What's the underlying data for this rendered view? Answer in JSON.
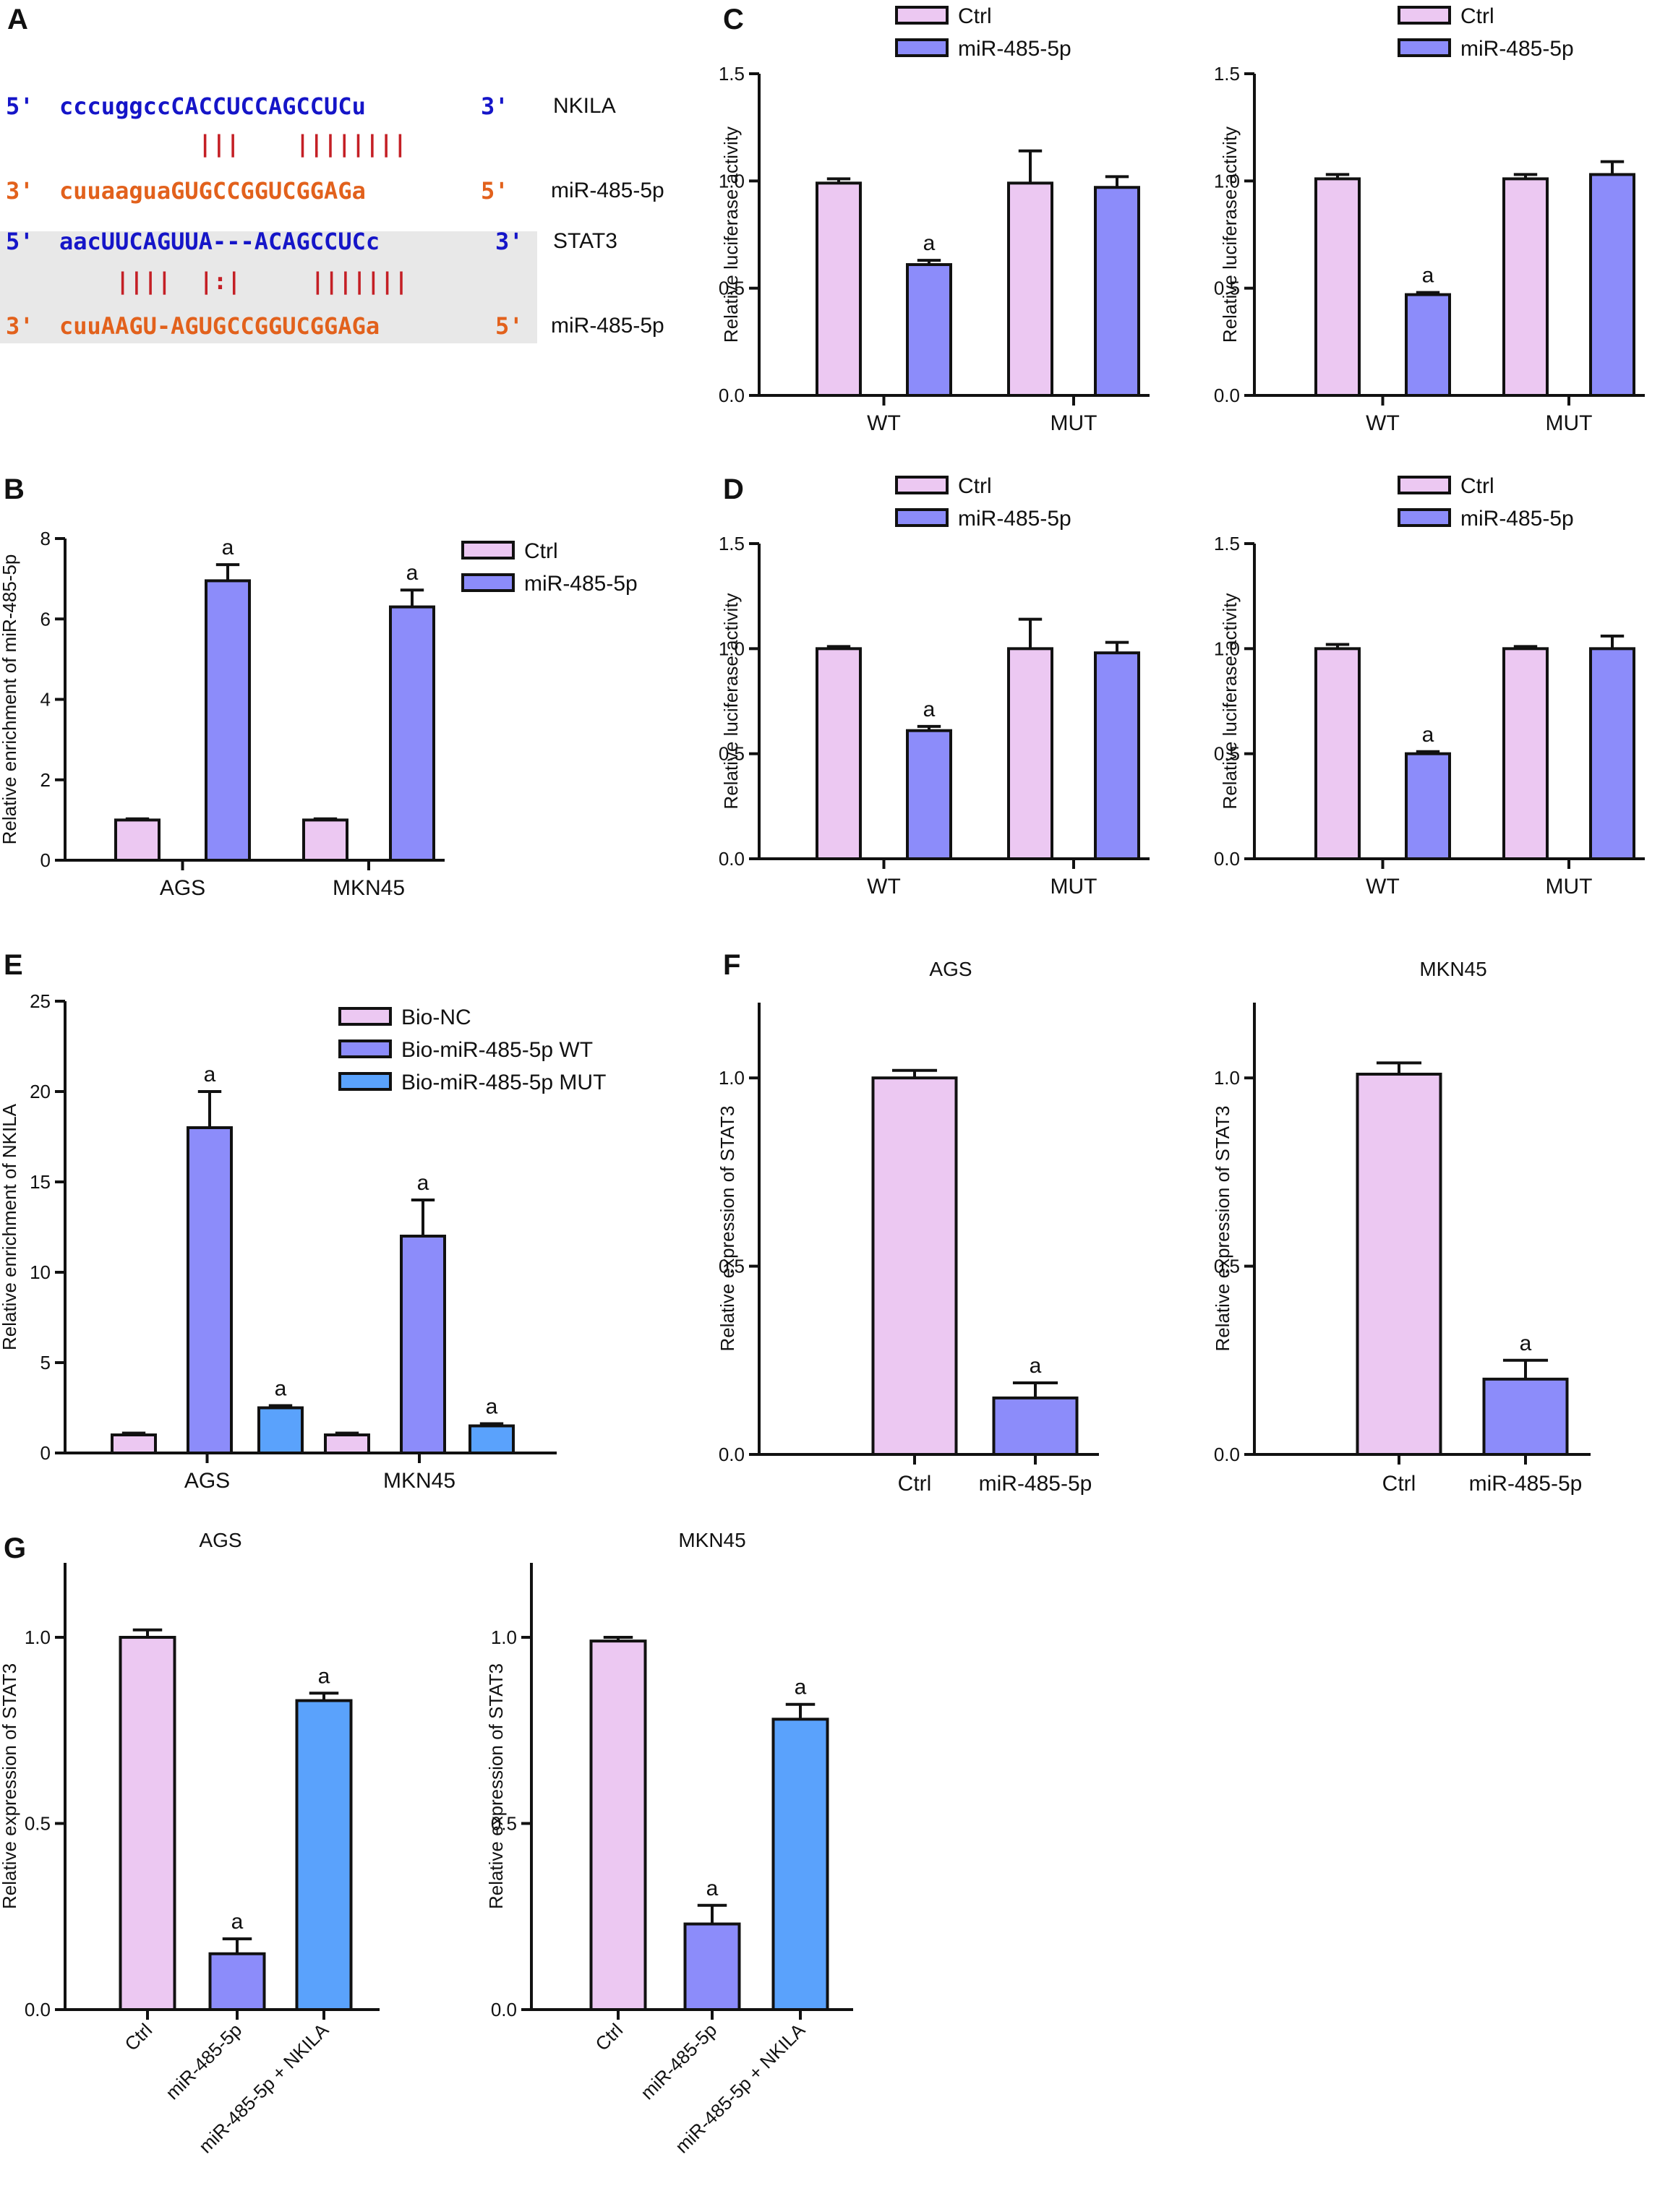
{
  "colors": {
    "ctrl": "#ecc8f2",
    "mir": "#8c8cfa",
    "nkila": "#5aa2fc",
    "seqBlue": "#1515c8",
    "seqOrange": "#e2611c",
    "pairRed": "#c41f25"
  },
  "panel_a": {
    "label": "A",
    "rows": [
      {
        "prime5": "5'",
        "seq": "cccuggccCACCUCCAGCCUCu",
        "prime3": "3'",
        "name": "NKILA",
        "color": "blue"
      },
      {
        "pairs": "|||    ||||||||"
      },
      {
        "prime5": "3'",
        "seq": "cuuaaguaGUGCCGGUCGGAGa",
        "prime3": "5'",
        "name": "miR-485-5p",
        "color": "orange"
      },
      {
        "prime5": "5'",
        "seq": "aacUUCAGUUA---ACAGCCUCc",
        "prime3": "3'",
        "name": "STAT3",
        "color": "blue"
      },
      {
        "pairs": "||||  |:|     |||||||"
      },
      {
        "prime5": "3'",
        "seq": "cuuAAGU-AGUGCCGGUCGGAGa",
        "prime3": "5'",
        "name": "miR-485-5p",
        "color": "orange"
      }
    ]
  },
  "panel_labels": [
    "A",
    "B",
    "C",
    "D",
    "E",
    "F",
    "G"
  ],
  "chart_data": [
    {
      "id": "C1",
      "panel": "C",
      "type": "bar",
      "ylabel": "Relative luciferase activity",
      "ylim": [
        0,
        1.5
      ],
      "yticks": [
        "0.0",
        "0.5",
        "1.0",
        "1.5"
      ],
      "categories": [
        "WT",
        "MUT"
      ],
      "legend": [
        "Ctrl",
        "miR-485-5p"
      ],
      "series": [
        {
          "name": "Ctrl",
          "values": [
            0.99,
            0.99
          ],
          "errors": [
            0.02,
            0.15
          ]
        },
        {
          "name": "miR-485-5p",
          "values": [
            0.61,
            0.97
          ],
          "errors": [
            0.02,
            0.05
          ]
        }
      ],
      "annotations": [
        {
          "series": 1,
          "index": 0,
          "text": "a"
        }
      ]
    },
    {
      "id": "C2",
      "type": "bar",
      "ylabel": "Relative luciferase activity",
      "ylim": [
        0,
        1.5
      ],
      "yticks": [
        "0.0",
        "0.5",
        "1.0",
        "1.5"
      ],
      "categories": [
        "WT",
        "MUT"
      ],
      "legend": [
        "Ctrl",
        "miR-485-5p"
      ],
      "series": [
        {
          "name": "Ctrl",
          "values": [
            1.01,
            1.01
          ],
          "errors": [
            0.02,
            0.02
          ]
        },
        {
          "name": "miR-485-5p",
          "values": [
            0.47,
            1.03
          ],
          "errors": [
            0.01,
            0.06
          ]
        }
      ],
      "annotations": [
        {
          "series": 1,
          "index": 0,
          "text": "a"
        }
      ]
    },
    {
      "id": "B",
      "panel": "B",
      "type": "bar",
      "ylabel": "Relative enrichment of miR-485-5p",
      "ylim": [
        0,
        8
      ],
      "yticks": [
        "0",
        "2",
        "4",
        "6",
        "8"
      ],
      "categories": [
        "AGS",
        "MKN45"
      ],
      "legend": [
        "Ctrl",
        "miR-485-5p"
      ],
      "series": [
        {
          "name": "Ctrl",
          "values": [
            1.0,
            1.0
          ],
          "errors": [
            0.03,
            0.03
          ]
        },
        {
          "name": "miR-485-5p",
          "values": [
            6.95,
            6.3
          ],
          "errors": [
            0.4,
            0.42
          ]
        }
      ],
      "annotations": [
        {
          "series": 1,
          "index": 0,
          "text": "a"
        },
        {
          "series": 1,
          "index": 1,
          "text": "a"
        }
      ]
    },
    {
      "id": "D1",
      "panel": "D",
      "type": "bar",
      "ylabel": "Relative luciferase activity",
      "ylim": [
        0,
        1.5
      ],
      "yticks": [
        "0.0",
        "0.5",
        "1.0",
        "1.5"
      ],
      "categories": [
        "WT",
        "MUT"
      ],
      "legend": [
        "Ctrl",
        "miR-485-5p"
      ],
      "series": [
        {
          "name": "Ctrl",
          "values": [
            1.0,
            1.0
          ],
          "errors": [
            0.01,
            0.14
          ]
        },
        {
          "name": "miR-485-5p",
          "values": [
            0.61,
            0.98
          ],
          "errors": [
            0.02,
            0.05
          ]
        }
      ],
      "annotations": [
        {
          "series": 1,
          "index": 0,
          "text": "a"
        }
      ]
    },
    {
      "id": "D2",
      "type": "bar",
      "ylabel": "Relative luciferase activity",
      "ylim": [
        0,
        1.5
      ],
      "yticks": [
        "0.0",
        "0.5",
        "1.0",
        "1.5"
      ],
      "categories": [
        "WT",
        "MUT"
      ],
      "legend": [
        "Ctrl",
        "miR-485-5p"
      ],
      "series": [
        {
          "name": "Ctrl",
          "values": [
            1.0,
            1.0
          ],
          "errors": [
            0.02,
            0.01
          ]
        },
        {
          "name": "miR-485-5p",
          "values": [
            0.5,
            1.0
          ],
          "errors": [
            0.01,
            0.06
          ]
        }
      ],
      "annotations": [
        {
          "series": 1,
          "index": 0,
          "text": "a"
        }
      ]
    },
    {
      "id": "E",
      "panel": "E",
      "type": "bar",
      "ylabel": "Relative enrichment of NKILA",
      "ylim": [
        0,
        25
      ],
      "yticks": [
        "0",
        "5",
        "10",
        "15",
        "20",
        "25"
      ],
      "categories": [
        "AGS",
        "MKN45"
      ],
      "legend": [
        "Bio-NC",
        "Bio-miR-485-5p WT",
        "Bio-miR-485-5p MUT"
      ],
      "series": [
        {
          "name": "Bio-NC",
          "values": [
            1.0,
            1.0
          ],
          "errors": [
            0.1,
            0.1
          ]
        },
        {
          "name": "Bio-miR-485-5p WT",
          "values": [
            18.0,
            12.0
          ],
          "errors": [
            2.0,
            2.0
          ]
        },
        {
          "name": "Bio-miR-485-5p MUT",
          "values": [
            2.5,
            1.5
          ],
          "errors": [
            0.12,
            0.12
          ]
        }
      ],
      "annotations": [
        {
          "series": 1,
          "index": 0,
          "text": "a"
        },
        {
          "series": 2,
          "index": 0,
          "text": "a"
        },
        {
          "series": 1,
          "index": 1,
          "text": "a"
        },
        {
          "series": 2,
          "index": 1,
          "text": "a"
        }
      ]
    },
    {
      "id": "F1",
      "panel": "F",
      "type": "bar",
      "title": "AGS",
      "ylabel": "Relative expression of STAT3",
      "ylim": [
        0,
        1.2
      ],
      "yticks": [
        "0.0",
        "0.5",
        "1.0"
      ],
      "categories": [
        "Ctrl",
        "miR-485-5p"
      ],
      "values": [
        1.0,
        0.15
      ],
      "errors": [
        0.02,
        0.04
      ],
      "annotations": [
        {
          "index": 1,
          "text": "a"
        }
      ]
    },
    {
      "id": "F2",
      "type": "bar",
      "title": "MKN45",
      "ylabel": "Relative expression of STAT3",
      "ylim": [
        0,
        1.2
      ],
      "yticks": [
        "0.0",
        "0.5",
        "1.0"
      ],
      "categories": [
        "Ctrl",
        "miR-485-5p"
      ],
      "values": [
        1.01,
        0.2
      ],
      "errors": [
        0.03,
        0.05
      ],
      "annotations": [
        {
          "index": 1,
          "text": "a"
        }
      ]
    },
    {
      "id": "G1",
      "panel": "G",
      "type": "bar",
      "title": "AGS",
      "ylabel": "Relative expression of STAT3",
      "ylim": [
        0,
        1.2
      ],
      "yticks": [
        "0.0",
        "0.5",
        "1.0"
      ],
      "categories": [
        "Ctrl",
        "miR-485-5p",
        "miR-485-5p + NKILA"
      ],
      "values": [
        1.0,
        0.15,
        0.83
      ],
      "errors": [
        0.02,
        0.04,
        0.02
      ],
      "annotations": [
        {
          "index": 1,
          "text": "a"
        },
        {
          "index": 2,
          "text": "a"
        }
      ]
    },
    {
      "id": "G2",
      "type": "bar",
      "title": "MKN45",
      "ylabel": "Relative expression of STAT3",
      "ylim": [
        0,
        1.2
      ],
      "yticks": [
        "0.0",
        "0.5",
        "1.0"
      ],
      "categories": [
        "Ctrl",
        "miR-485-5p",
        "miR-485-5p + NKILA"
      ],
      "values": [
        0.99,
        0.23,
        0.78
      ],
      "errors": [
        0.01,
        0.05,
        0.04
      ],
      "annotations": [
        {
          "index": 1,
          "text": "a"
        },
        {
          "index": 2,
          "text": "a"
        }
      ]
    }
  ]
}
